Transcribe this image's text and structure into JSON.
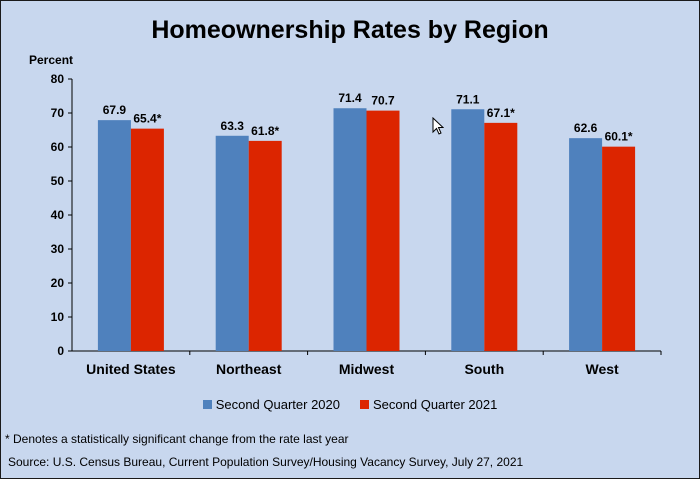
{
  "chart_data": {
    "type": "bar",
    "title": "Homeownership Rates by Region",
    "ylabel": "Percent",
    "xlabel": "",
    "ylim": [
      0,
      80
    ],
    "yticks": [
      0,
      10,
      20,
      30,
      40,
      50,
      60,
      70,
      80
    ],
    "grid": false,
    "legend_position": "bottom",
    "categories": [
      "United States",
      "Northeast",
      "Midwest",
      "South",
      "West"
    ],
    "series": [
      {
        "name": "Second Quarter 2020",
        "color": "#4f81bd",
        "values": [
          67.9,
          63.3,
          71.4,
          71.1,
          62.6
        ],
        "labels": [
          "67.9",
          "63.3",
          "71.4",
          "71.1",
          "62.6"
        ]
      },
      {
        "name": "Second Quarter 2021",
        "color": "#dc2500",
        "values": [
          65.4,
          61.8,
          70.7,
          67.1,
          60.1
        ],
        "labels": [
          "65.4*",
          "61.8*",
          "70.7",
          "67.1*",
          "60.1*"
        ]
      }
    ]
  },
  "footnote": "* Denotes a statistically significant change from the rate last year",
  "source": "Source: U.S. Census Bureau, Current Population Survey/Housing Vacancy Survey, July 27, 2021",
  "icons": {
    "cursor": "mouse-pointer-icon"
  }
}
